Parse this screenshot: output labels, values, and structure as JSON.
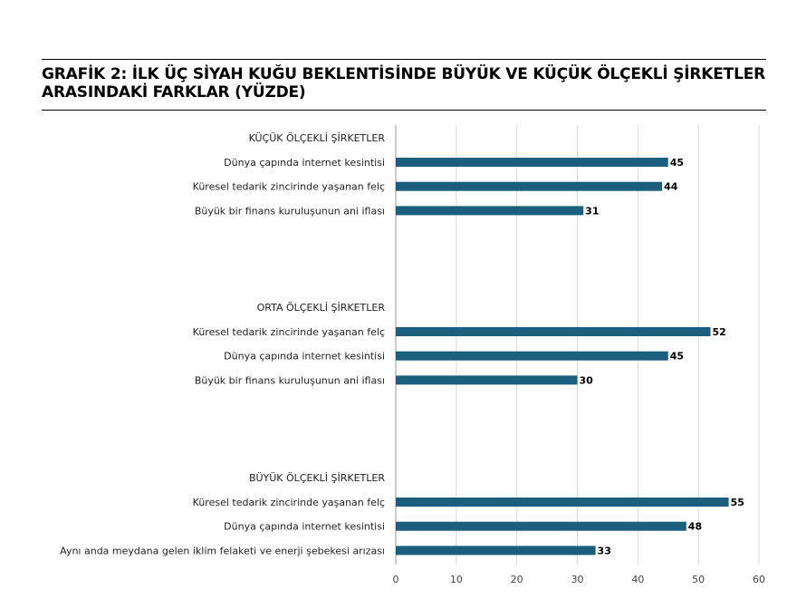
{
  "chart_data": {
    "type": "bar",
    "orientation": "horizontal",
    "title": "GRAFİK 2: İLK ÜÇ SİYAH KUĞU BEKLENTİSİNDE BÜYÜK VE KÜÇÜK ÖLÇEKLİ ŞİRKETLER ARASINDAKİ FARKLAR (YÜZDE)",
    "xlim": [
      0,
      60
    ],
    "xticks": [
      0,
      10,
      20,
      30,
      40,
      50,
      60
    ],
    "grid": true,
    "bar_color": "#1b5e7e",
    "groups": [
      {
        "label": "KÜÇÜK ÖLÇEKLİ ŞİRKETLER",
        "categories": [
          "Dünya çapında internet kesintisi",
          "Küresel tedarik zincirinde yaşanan felç",
          "Büyük bir finans kuruluşunun ani iflası"
        ],
        "values": [
          45,
          44,
          31
        ]
      },
      {
        "label": "ORTA ÖLÇEKLİ ŞİRKETLER",
        "categories": [
          "Küresel tedarik zincirinde yaşanan felç",
          "Dünya çapında internet kesintisi",
          "Büyük bir finans kuruluşunun ani iflası"
        ],
        "values": [
          52,
          45,
          30
        ]
      },
      {
        "label": "BÜYÜK ÖLÇEKLİ ŞİRKETLER",
        "categories": [
          "Küresel tedarik zincirinde yaşanan felç",
          "Dünya çapında internet kesintisi",
          "Aynı anda meydana gelen iklim felaketi ve enerji şebekesi arızası"
        ],
        "values": [
          55,
          48,
          33
        ]
      }
    ]
  }
}
